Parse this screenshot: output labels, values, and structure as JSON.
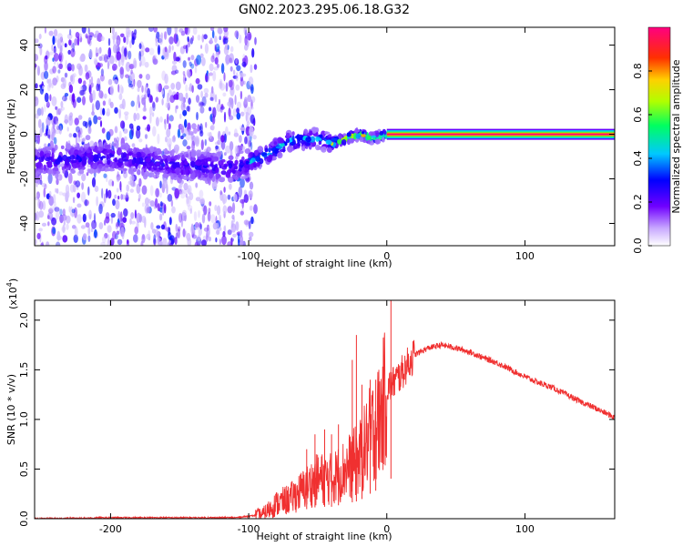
{
  "title": "GN02.2023.295.06.18.G32",
  "chart_data": [
    {
      "type": "heatmap",
      "xlabel": "Height of straight line (km)",
      "ylabel": "Frequency (Hz)",
      "xlim": [
        -255,
        165
      ],
      "ylim": [
        -50,
        48
      ],
      "xticks": [
        -200,
        -100,
        0,
        100
      ],
      "yticks": [
        -40,
        -20,
        0,
        20,
        40
      ],
      "colorbar": {
        "label": "Normalized spectral amplitude",
        "range": [
          0,
          1
        ],
        "ticks": [
          0.0,
          0.2,
          0.4,
          0.6,
          0.8
        ],
        "colors": [
          "#ffffff",
          "#b090ff",
          "#6000ff",
          "#0000ff",
          "#00d0ff",
          "#00ff60",
          "#b0ff00",
          "#ffd000",
          "#ff3000",
          "#ff0080"
        ]
      },
      "ridge": {
        "x": [
          -250,
          -200,
          -150,
          -110,
          -90,
          -70,
          -50,
          -40,
          -30,
          -20,
          -10,
          0
        ],
        "y": [
          -12,
          -10,
          -14,
          -15,
          -10,
          -3,
          -2,
          -4,
          -2,
          0,
          -2,
          0
        ],
        "steady_line": {
          "x_start": 0,
          "x_end": 165,
          "y": 0
        }
      },
      "noise_region_x": [
        -255,
        -105
      ]
    },
    {
      "type": "line",
      "xlabel": "Height of straight line (km)",
      "ylabel": "SNR (10 * v/v)",
      "y_multiplier_label": "(x10",
      "y_multiplier_exp": "4",
      "xlim": [
        -255,
        165
      ],
      "ylim": [
        0,
        2.2
      ],
      "xticks": [
        -200,
        -100,
        0,
        100
      ],
      "yticks": [
        0.0,
        0.5,
        1.0,
        1.5,
        2.0
      ],
      "series": [
        {
          "color": "#f03030",
          "x": [
            -255,
            -200,
            -150,
            -110,
            -90,
            -80,
            -70,
            -60,
            -50,
            -40,
            -30,
            -20,
            -15,
            -10,
            -5,
            0,
            10,
            20,
            30,
            40,
            50,
            60,
            70,
            80,
            90,
            100,
            110,
            120,
            130,
            140,
            150,
            165
          ],
          "y": [
            0.0,
            0.01,
            0.01,
            0.01,
            0.04,
            0.15,
            0.2,
            0.3,
            0.4,
            0.4,
            0.5,
            0.6,
            0.75,
            0.9,
            1.0,
            1.3,
            1.45,
            1.65,
            1.72,
            1.75,
            1.72,
            1.68,
            1.62,
            1.57,
            1.5,
            1.43,
            1.37,
            1.32,
            1.25,
            1.18,
            1.12,
            1.02
          ]
        }
      ],
      "spikes": {
        "x": [
          -58,
          -52,
          -45,
          -40,
          -35,
          -25,
          -22,
          -18,
          -12,
          -8,
          3
        ],
        "y": [
          0.7,
          0.85,
          0.9,
          0.85,
          0.95,
          1.6,
          1.85,
          1.35,
          1.4,
          1.4,
          2.2
        ]
      }
    }
  ]
}
